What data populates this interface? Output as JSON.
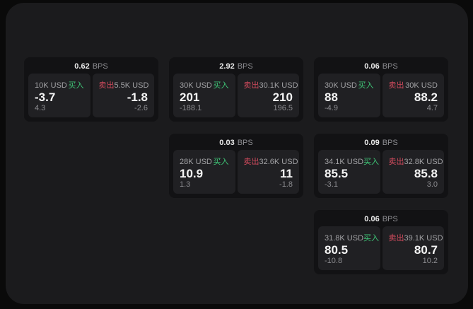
{
  "labels": {
    "bps": "BPS",
    "buy": "买入",
    "sell": "卖出"
  },
  "colors": {
    "outer_bg": "#0a0a0a",
    "panel_bg": "#1b1b1d",
    "card_bg": "#121214",
    "pane_bg": "#202023",
    "buy_green": "#3fc878",
    "sell_red": "#cf4a5c",
    "header_value": "#eaeaea",
    "value_text": "#f5f5f5",
    "label_text": "#a2a2a5",
    "dim_text": "#8c8c90"
  },
  "cards": [
    {
      "row": 1,
      "col": 1,
      "spread": "0.62",
      "buy": {
        "amount": "10K USD",
        "value": "-3.7",
        "delta": "4.3"
      },
      "sell": {
        "amount": "5.5K USD",
        "value": "-1.8",
        "delta": "-2.6"
      }
    },
    {
      "row": 1,
      "col": 2,
      "spread": "2.92",
      "buy": {
        "amount": "30K USD",
        "value": "201",
        "delta": "-188.1"
      },
      "sell": {
        "amount": "30.1K USD",
        "value": "210",
        "delta": "196.5"
      }
    },
    {
      "row": 1,
      "col": 3,
      "spread": "0.06",
      "buy": {
        "amount": "30K USD",
        "value": "88",
        "delta": "-4.9"
      },
      "sell": {
        "amount": "30K USD",
        "value": "88.2",
        "delta": "4.7"
      }
    },
    {
      "row": 2,
      "col": 2,
      "spread": "0.03",
      "buy": {
        "amount": "28K USD",
        "value": "10.9",
        "delta": "1.3"
      },
      "sell": {
        "amount": "32.6K USD",
        "value": "11",
        "delta": "-1.8"
      }
    },
    {
      "row": 2,
      "col": 3,
      "spread": "0.09",
      "buy": {
        "amount": "34.1K USD",
        "value": "85.5",
        "delta": "-3.1"
      },
      "sell": {
        "amount": "32.8K USD",
        "value": "85.8",
        "delta": "3.0"
      }
    },
    {
      "row": 3,
      "col": 3,
      "spread": "0.06",
      "buy": {
        "amount": "31.8K USD",
        "value": "80.5",
        "delta": "-10.8"
      },
      "sell": {
        "amount": "39.1K USD",
        "value": "80.7",
        "delta": "10.2"
      }
    }
  ]
}
